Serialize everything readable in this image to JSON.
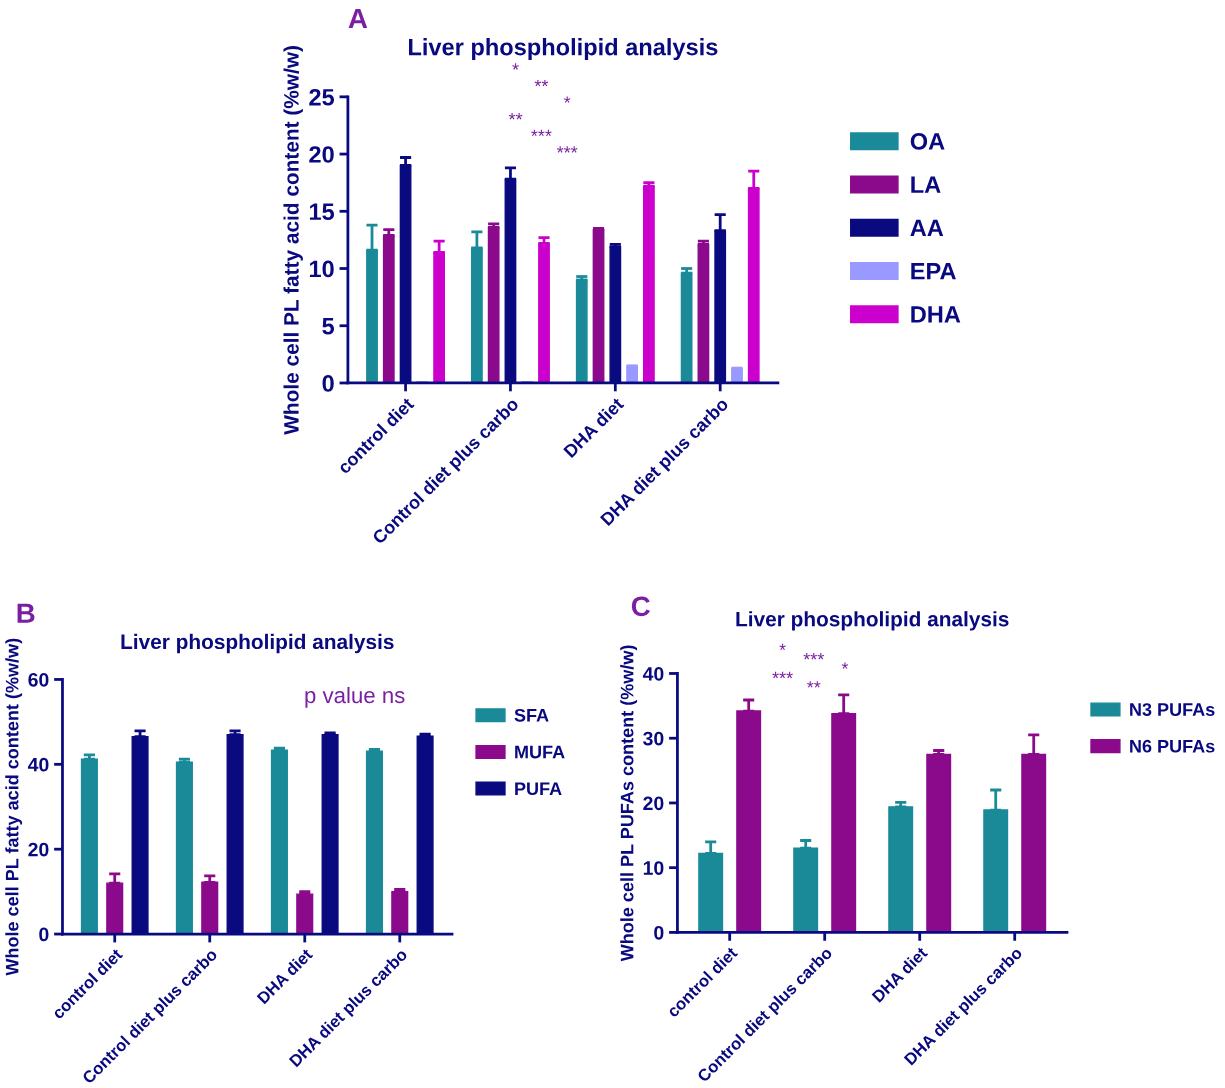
{
  "chart_data": [
    {
      "type": "bar",
      "title": "Liver phospholipid analysis",
      "ylabel": "Whole cell PL fatty acid content (%w/w)",
      "categories": [
        "control diet",
        "Control diet plus carbo",
        "DHA diet",
        "DHA diet plus carbo"
      ],
      "series": [
        {
          "name": "OA",
          "color": "#1a8a99",
          "values": [
            11.6,
            11.8,
            9.0,
            9.6
          ],
          "errors": [
            [
              11.6,
              13.8
            ],
            [
              11.8,
              13.2
            ],
            [
              9.0,
              9.3
            ],
            [
              9.6,
              10.0
            ]
          ]
        },
        {
          "name": "LA",
          "color": "#8b0a8b",
          "values": [
            12.9,
            13.6,
            13.4,
            12.1
          ],
          "errors": [
            [
              12.9,
              13.4
            ],
            [
              13.6,
              13.9
            ],
            [
              13.4,
              13.5
            ],
            [
              12.1,
              12.4
            ]
          ]
        },
        {
          "name": "AA",
          "color": "#0a0a80",
          "values": [
            19.0,
            17.8,
            11.9,
            13.3
          ],
          "errors": [
            [
              19.0,
              19.7
            ],
            [
              17.8,
              18.8
            ],
            [
              11.9,
              12.1
            ],
            [
              13.3,
              14.7
            ]
          ]
        },
        {
          "name": "EPA",
          "color": "#9999ff",
          "values": [
            0.1,
            0.1,
            1.4,
            1.2
          ],
          "errors": [
            null,
            null,
            [
              1.4,
              1.5
            ],
            [
              1.2,
              1.3
            ]
          ]
        },
        {
          "name": "DHA",
          "color": "#cc00cc",
          "values": [
            11.4,
            12.2,
            17.2,
            17.0
          ],
          "errors": [
            [
              11.4,
              12.4
            ],
            [
              12.2,
              12.7
            ],
            [
              17.2,
              17.5
            ],
            [
              17.0,
              18.5
            ]
          ]
        }
      ],
      "ylim": [
        0,
        25
      ],
      "yticks": [
        0,
        5,
        10,
        15,
        20,
        25
      ],
      "legend": "right",
      "grid": false,
      "annotations": [
        "A",
        "*",
        "**",
        "*",
        "**",
        "***",
        "***"
      ]
    },
    {
      "type": "bar",
      "title": "Liver phospholipid analysis",
      "ylabel": "Whole cell PL fatty acid content (%w/w)",
      "categories": [
        "control diet",
        "Control diet plus carbo",
        "DHA diet",
        "DHA diet plus carbo"
      ],
      "series": [
        {
          "name": "SFA",
          "color": "#1a8a99",
          "values": [
            41.2,
            40.5,
            43.3,
            43.1
          ],
          "errors": [
            [
              41.2,
              42.2
            ],
            [
              40.5,
              41.2
            ],
            [
              43.3,
              43.8
            ],
            [
              43.1,
              43.5
            ]
          ]
        },
        {
          "name": "MUFA",
          "color": "#8b0a8b",
          "values": [
            12.0,
            12.2,
            9.4,
            10.0
          ],
          "errors": [
            [
              12.0,
              14.2
            ],
            [
              12.2,
              13.7
            ],
            [
              9.4,
              10.0
            ],
            [
              10.0,
              10.5
            ]
          ]
        },
        {
          "name": "PUFA",
          "color": "#0a0a80",
          "values": [
            46.5,
            47.0,
            47.0,
            46.6
          ],
          "errors": [
            [
              46.5,
              47.9
            ],
            [
              47.0,
              47.9
            ],
            [
              47.0,
              47.4
            ],
            [
              46.6,
              47.1
            ]
          ]
        }
      ],
      "ylim": [
        0,
        60
      ],
      "yticks": [
        0,
        20,
        40,
        60
      ],
      "legend": "right",
      "grid": false,
      "annotations": [
        "B",
        "p value ns"
      ]
    },
    {
      "type": "bar",
      "title": "Liver phospholipid analysis",
      "ylabel": "Whole cell PL PUFAs content (%w/w)",
      "categories": [
        "control diet",
        "Control diet plus carbo",
        "DHA diet",
        "DHA diet plus carbo"
      ],
      "series": [
        {
          "name": "N3 PUFAs",
          "color": "#1a8a99",
          "values": [
            12.2,
            13.0,
            19.4,
            18.9
          ],
          "errors": [
            [
              12.2,
              14.0
            ],
            [
              13.0,
              14.2
            ],
            [
              19.4,
              20.1
            ],
            [
              18.9,
              22.0
            ]
          ]
        },
        {
          "name": "N6 PUFAs",
          "color": "#8b0a8b",
          "values": [
            34.2,
            33.8,
            27.5,
            27.5
          ],
          "errors": [
            [
              34.2,
              35.9
            ],
            [
              33.8,
              36.7
            ],
            [
              27.5,
              28.1
            ],
            [
              27.5,
              30.5
            ]
          ]
        }
      ],
      "ylim": [
        0,
        40
      ],
      "yticks": [
        0,
        10,
        20,
        30,
        40
      ],
      "legend": "right",
      "grid": false,
      "annotations": [
        "C",
        "*",
        "***",
        "*",
        "***",
        "**"
      ]
    }
  ]
}
